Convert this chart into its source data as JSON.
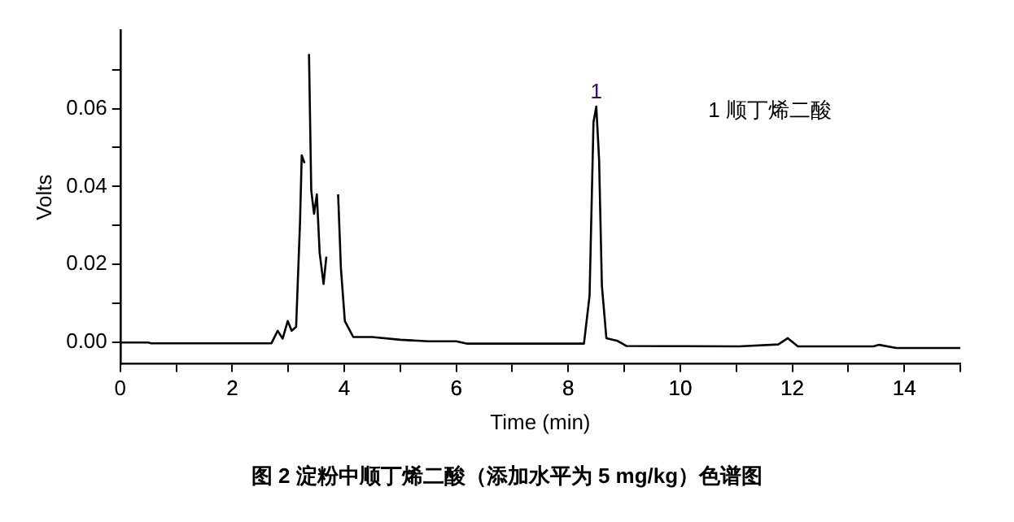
{
  "chart_data": {
    "type": "line",
    "title": "图 2 淀粉中顺丁烯二酸（添加水平为 5 mg/kg）色谱图",
    "xlabel": "Time (min)",
    "ylabel": "Volts",
    "annotations": [
      {
        "text": "1",
        "x": 8.5,
        "y": 0.0605
      },
      "1 顺丁烯二酸"
    ],
    "series": [
      {
        "color": "#000000",
        "x": [
          0,
          0.5,
          0.55,
          2.7,
          2.81,
          2.9,
          2.99,
          3.06,
          3.14,
          3.21,
          3.24,
          3.29,
          3.34,
          3.37,
          3.41,
          3.46,
          3.51,
          3.56,
          3.63,
          3.68,
          3.7,
          3.86,
          3.89,
          3.94,
          4.01,
          4.16,
          4.5,
          5.0,
          5.5,
          6.0,
          6.2,
          7.5,
          8.28,
          8.38,
          8.45,
          8.5,
          8.55,
          8.6,
          8.68,
          8.88,
          9.04,
          11.05,
          11.75,
          11.92,
          12.1,
          13.45,
          13.55,
          13.86,
          15.0
        ],
        "values": [
          0,
          0,
          -0.0002,
          -0.0002,
          0.003,
          0.001,
          0.0055,
          0.003,
          0.004,
          0.031,
          0.048,
          0.046,
          null,
          0.074,
          0.039,
          0.033,
          0.038,
          0.023,
          0.015,
          0.022,
          null,
          null,
          0.038,
          0.019,
          0.0055,
          0.0014,
          0.0014,
          0.0007,
          0.0003,
          0.0003,
          -0.0003,
          -0.0003,
          -0.0003,
          0.012,
          0.0565,
          0.0605,
          0.047,
          0.0146,
          0.0011,
          0.0004,
          -0.0009,
          -0.001,
          -0.0005,
          0.0011,
          -0.001,
          -0.001,
          -0.0006,
          -0.0014,
          -0.0014
        ]
      }
    ],
    "xlim": [
      0,
      15
    ],
    "ylim": [
      -0.0055,
      0.08
    ],
    "xticks": [
      0,
      {
        "value": 1,
        "label": null
      },
      2,
      {
        "value": 3,
        "label": null
      },
      4,
      {
        "value": 5,
        "label": null
      },
      6,
      {
        "value": 7,
        "label": null
      },
      8,
      {
        "value": 9,
        "label": null
      },
      10,
      {
        "value": 11,
        "label": null
      },
      12,
      {
        "value": 13,
        "label": null
      },
      14,
      {
        "value": 15,
        "label": null
      }
    ],
    "yticks": [
      {
        "value": 0,
        "label": "0.00"
      },
      {
        "value": 0.01,
        "label": null
      },
      {
        "value": 0.02,
        "label": "0.02"
      },
      {
        "value": 0.03,
        "label": null
      },
      {
        "value": 0.04,
        "label": "0.04"
      },
      {
        "value": 0.05,
        "label": null
      },
      {
        "value": 0.06,
        "label": "0.06"
      },
      {
        "value": 0.07,
        "label": null
      }
    ],
    "grid": false,
    "legend": false,
    "marker": "none",
    "line_style": "solid"
  }
}
